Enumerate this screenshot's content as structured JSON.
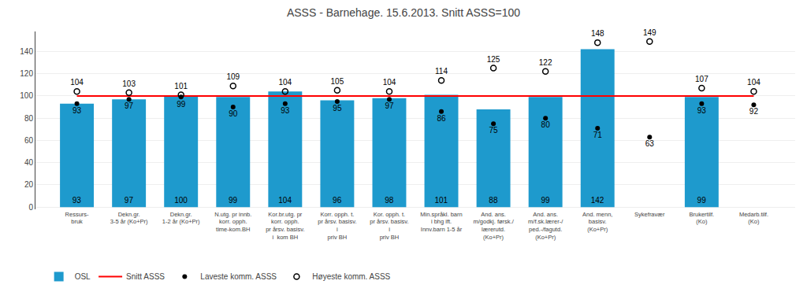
{
  "chart_data": {
    "type": "bar",
    "title": "ASSS - Barnehage. 15.6.2013. Snitt ASSS=100",
    "categories": [
      "Ressurs-\nbruk",
      "Dekn.gr.\n3-5 år (Ko+Pr)",
      "Dekn.gr.\n1-2 år (Ko+Pr)",
      "N.utg. pr innb.\nkorr. opph.\ntime-kom.BH",
      "Kor.br.utg. pr\nkorr. opph.\npr årsv. basisv.\ni  kom BH",
      "Korr. opph. t.\npr årsv. basisv.\ni\npriv BH",
      "Kor. opph. t.\npr årsv. basisv.\ni\npriv BH",
      "Min.språkl. barn\ni bhg ift.\nInnv.barn 1-5 år",
      "And. ans.\nm/godkj. førsk./\nlærerutd.\n(Ko+Pr)",
      "And. ans.\nm/f.sk.lærer-/\nped.-/fagutd.\n(Ko+Pr)",
      "And. menn,\nbasisv.\n(Ko+Pr)",
      "Sykefravær",
      "Brukertilf.\n(Ko)",
      "Medarb.tilf.\n(Ko)"
    ],
    "series": [
      {
        "name": "OSL",
        "type": "bar",
        "color": "#1E9ACD",
        "data_labels": true,
        "values": [
          93,
          97,
          100,
          99,
          104,
          96,
          98,
          101,
          88,
          99,
          142,
          null,
          99,
          null
        ]
      },
      {
        "name": "Snitt ASSS",
        "type": "line",
        "color": "#FF0000",
        "data_labels": false,
        "values": [
          100,
          100,
          100,
          100,
          100,
          100,
          100,
          100,
          100,
          100,
          100,
          100,
          100,
          100
        ]
      },
      {
        "name": "Laveste komm. ASSS",
        "type": "scatter",
        "marker": "circle",
        "color": "#000000",
        "data_labels": true,
        "values": [
          93,
          97,
          99,
          90,
          93,
          95,
          97,
          86,
          75,
          80,
          71,
          63,
          93,
          92
        ]
      },
      {
        "name": "Høyeste komm. ASSS",
        "type": "scatter",
        "marker": "circle-open",
        "color": "#000000",
        "data_labels": true,
        "values": [
          104,
          103,
          101,
          109,
          104,
          105,
          104,
          114,
          125,
          122,
          148,
          149,
          107,
          104
        ]
      }
    ],
    "ylim": [
      -2,
      158
    ],
    "yticks": [
      0,
      20,
      40,
      60,
      80,
      100,
      120,
      140
    ],
    "grid": true,
    "legend": "bottom left"
  }
}
